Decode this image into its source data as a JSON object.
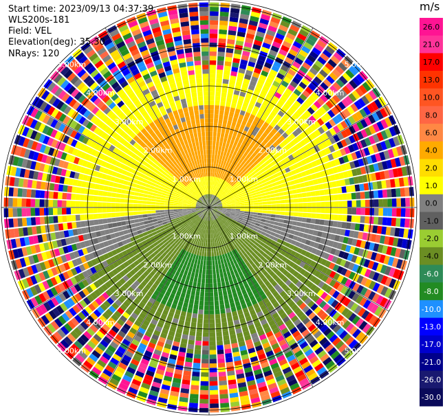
{
  "header": {
    "start_time": "Start time: 2023/09/13 04:37:39",
    "device": "WLS200s-181",
    "field": "Field: VEL",
    "elevation": "Elevation(deg): 35.30",
    "nrays": "NRays: 120"
  },
  "chart_data": {
    "type": "ppi",
    "field": "VEL",
    "unit": "m/s",
    "n_rays": 120,
    "range_ring_labels": [
      "1.00km",
      "2.00km",
      "3.00km",
      "4.00km",
      "5.00km"
    ],
    "colorbar": {
      "labels": [
        "26.0",
        "21.0",
        "17.0",
        "13.0",
        "10.0",
        "8.0",
        "6.0",
        "4.0",
        "2.0",
        "1.0",
        "0.0",
        "-1.0",
        "-2.0",
        "-4.0",
        "-6.0",
        "-8.0",
        "-10.0",
        "-13.0",
        "-17.0",
        "-21.0",
        "-26.0",
        "-30.0"
      ],
      "colors": [
        "#ff1493",
        "#ff3399",
        "#ff0000",
        "#ff3300",
        "#ff5522",
        "#ff6644",
        "#ff8844",
        "#ffaa00",
        "#ffdd00",
        "#ffff00",
        "#808080",
        "#606060",
        "#9acd32",
        "#6b8e23",
        "#2e8b57",
        "#228b22",
        "#1e90ff",
        "#0000ff",
        "#0000cd",
        "#00008b",
        "#191970",
        "#0a0a5a"
      ]
    },
    "pattern": {
      "clean_range_km": 3.3,
      "center_band": "gray",
      "north_color": "#ffff00",
      "north_core_color": "#ffa500",
      "south_color": "#6b8e23",
      "south_core_color": "#228b22"
    }
  }
}
